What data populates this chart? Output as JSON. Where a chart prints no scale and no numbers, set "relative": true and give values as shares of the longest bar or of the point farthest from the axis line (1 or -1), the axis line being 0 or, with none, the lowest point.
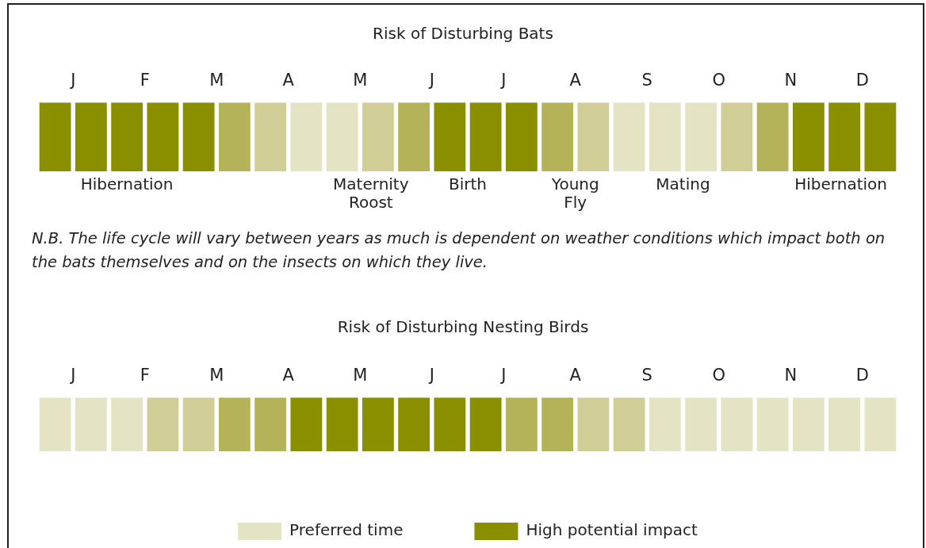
{
  "chart_data": [
    {
      "type": "bar",
      "title": "Risk of Disturbing Bats",
      "relative": true,
      "stacked": true,
      "categories": [
        "J",
        null,
        "F",
        null,
        "M",
        null,
        "A",
        null,
        "M",
        null,
        "J",
        null,
        "J",
        null,
        "A",
        null,
        "S",
        null,
        "O",
        null,
        "N",
        null,
        "D",
        null
      ],
      "series": [
        {
          "color": "#e4e3c4",
          "values": [
            null,
            null,
            null,
            null,
            null,
            null,
            null,
            1,
            1,
            null,
            null,
            null,
            null,
            null,
            null,
            null,
            1,
            1,
            1,
            null,
            null,
            null,
            null,
            null
          ]
        },
        {
          "color": "#d0ce96",
          "values": [
            null,
            null,
            null,
            null,
            null,
            null,
            1,
            null,
            null,
            1,
            null,
            null,
            null,
            null,
            null,
            1,
            null,
            null,
            null,
            1,
            null,
            null,
            null,
            null
          ]
        },
        {
          "color": "#b5b35a",
          "values": [
            null,
            null,
            null,
            null,
            null,
            1,
            null,
            null,
            null,
            null,
            1,
            null,
            null,
            null,
            1,
            null,
            null,
            null,
            null,
            null,
            1,
            null,
            null,
            null
          ]
        },
        {
          "color": "#8a8f00",
          "values": [
            1,
            1,
            1,
            1,
            1,
            null,
            null,
            null,
            null,
            null,
            null,
            1,
            1,
            1,
            null,
            null,
            null,
            null,
            null,
            null,
            null,
            1,
            1,
            1
          ]
        }
      ],
      "annotations": [
        "Hibernation",
        "Maternity Roost",
        "Birth",
        "Young Fly",
        "Mating",
        "Hibernation",
        "N.B. The life cycle will vary between years as much is dependent on weather conditions which impact both on the bats themselves and on the insects on which they live."
      ]
    },
    {
      "type": "bar",
      "title": "Risk of Disturbing Nesting Birds",
      "relative": true,
      "stacked": true,
      "legend": "bottom",
      "categories": [
        "J",
        null,
        "F",
        null,
        "M",
        null,
        "A",
        null,
        "M",
        null,
        "J",
        null,
        "J",
        null,
        "A",
        null,
        "S",
        null,
        "O",
        null,
        "N",
        null,
        "D",
        null
      ],
      "series": [
        {
          "name": "Preferred time",
          "color": "#e4e3c4",
          "values": [
            1,
            1,
            1,
            null,
            null,
            null,
            null,
            null,
            null,
            null,
            null,
            null,
            null,
            null,
            null,
            null,
            null,
            1,
            1,
            1,
            1,
            1,
            1,
            1
          ]
        },
        {
          "color": "#d0ce96",
          "values": [
            null,
            null,
            null,
            1,
            1,
            null,
            null,
            null,
            null,
            null,
            null,
            null,
            null,
            null,
            null,
            1,
            1,
            null,
            null,
            null,
            null,
            null,
            null,
            null
          ]
        },
        {
          "color": "#b5b35a",
          "values": [
            null,
            null,
            null,
            null,
            null,
            1,
            1,
            null,
            null,
            null,
            null,
            null,
            null,
            1,
            1,
            null,
            null,
            null,
            null,
            null,
            null,
            null,
            null,
            null
          ]
        },
        {
          "name": "High potential impact",
          "color": "#8a8f00",
          "values": [
            null,
            null,
            null,
            null,
            null,
            null,
            null,
            1,
            1,
            1,
            1,
            1,
            1,
            null,
            null,
            null,
            null,
            null,
            null,
            null,
            null,
            null,
            null,
            null
          ]
        }
      ]
    }
  ]
}
